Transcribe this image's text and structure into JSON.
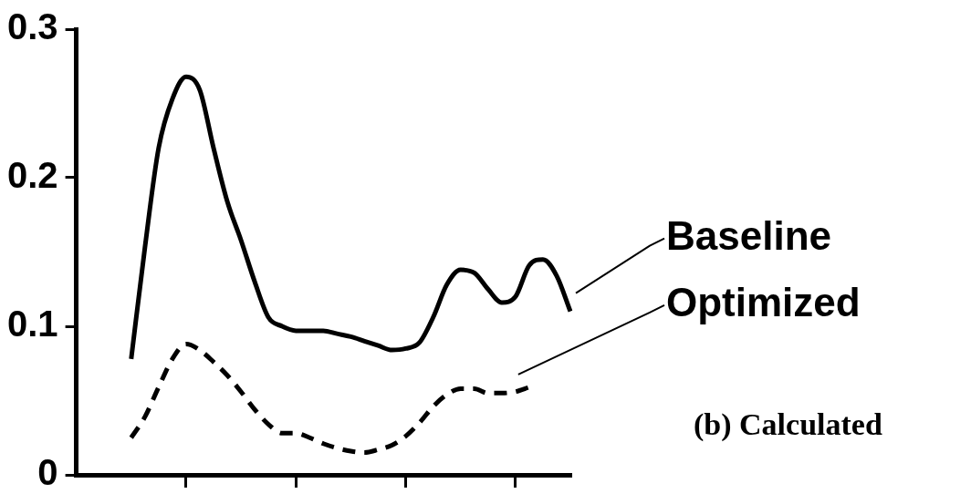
{
  "chart_data": {
    "type": "line",
    "categories": [
      null,
      null,
      null,
      null,
      null,
      null,
      null,
      null,
      null,
      null,
      null,
      null,
      null,
      null,
      null,
      null,
      null,
      null,
      null,
      null,
      null,
      null,
      null,
      null,
      null,
      null,
      null,
      null,
      null,
      null,
      null,
      null,
      null,
      null,
      null,
      null,
      null
    ],
    "series": [
      {
        "name": "Baseline",
        "color": "#000000",
        "line_style": "solid",
        "values": [
          null,
          null,
          null,
          null,
          0.078,
          0.153,
          0.22,
          0.253,
          0.268,
          0.259,
          0.22,
          0.184,
          0.158,
          0.13,
          0.106,
          0.1,
          0.097,
          0.097,
          0.097,
          0.095,
          0.093,
          0.09,
          0.087,
          0.084,
          0.085,
          0.089,
          0.106,
          0.128,
          0.138,
          0.136,
          0.125,
          0.116,
          0.12,
          0.141,
          0.145,
          0.134,
          0.11
        ]
      },
      {
        "name": "Optimized",
        "color": "#000000",
        "line_style": "dashed",
        "values": [
          null,
          null,
          null,
          null,
          0.025,
          0.039,
          0.059,
          0.078,
          0.088,
          0.084,
          0.076,
          0.067,
          0.056,
          0.044,
          0.034,
          0.028,
          0.028,
          0.025,
          0.021,
          0.018,
          0.016,
          0.015,
          0.017,
          0.02,
          0.026,
          0.035,
          0.046,
          0.054,
          0.058,
          0.058,
          0.055,
          0.055,
          0.056,
          0.059,
          null,
          null,
          null
        ]
      }
    ],
    "ylim": [
      0,
      0.3
    ],
    "yticks": [
      0,
      0.1,
      0.2,
      0.3
    ],
    "marker": "none",
    "grid": false,
    "annotations": [
      "(b) Calculated"
    ]
  }
}
